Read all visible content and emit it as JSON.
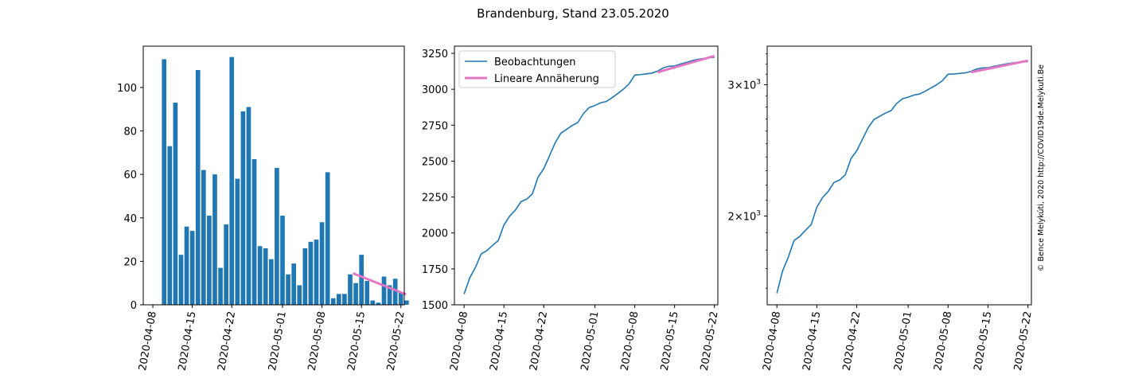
{
  "figure_title": "Brandenburg, Stand 23.05.2020",
  "watermark": "© Bence Melykúti, 2020  http://COVID19de.Melykuti.Be",
  "colors": {
    "series": "#1f77b4",
    "fit": "#e377c2",
    "axis": "#000000",
    "watermark": "#c8c8c8"
  },
  "chart_data": [
    {
      "type": "bar",
      "title": "",
      "xlabel": "",
      "ylabel": "",
      "ylim": [
        0,
        119
      ],
      "yticks": [
        0,
        20,
        40,
        60,
        80,
        100
      ],
      "xlim": [
        -1.7,
        44.6
      ],
      "x_ticks": [
        {
          "x": 0,
          "label": "2020-04-08"
        },
        {
          "x": 7,
          "label": "2020-04-15"
        },
        {
          "x": 14,
          "label": "2020-04-22"
        },
        {
          "x": 23,
          "label": "2020-05-01"
        },
        {
          "x": 30,
          "label": "2020-05-08"
        },
        {
          "x": 37,
          "label": "2020-05-15"
        },
        {
          "x": 44,
          "label": "2020-05-22"
        }
      ],
      "categories": [
        "2020-04-10",
        "2020-04-11",
        "2020-04-12",
        "2020-04-13",
        "2020-04-14",
        "2020-04-15",
        "2020-04-16",
        "2020-04-17",
        "2020-04-18",
        "2020-04-19",
        "2020-04-20",
        "2020-04-21",
        "2020-04-22",
        "2020-04-23",
        "2020-04-24",
        "2020-04-25",
        "2020-04-26",
        "2020-04-27",
        "2020-04-28",
        "2020-04-29",
        "2020-04-30",
        "2020-05-01",
        "2020-05-02",
        "2020-05-03",
        "2020-05-04",
        "2020-05-05",
        "2020-05-06",
        "2020-05-07",
        "2020-05-08",
        "2020-05-09",
        "2020-05-10",
        "2020-05-11",
        "2020-05-12",
        "2020-05-13",
        "2020-05-14",
        "2020-05-15",
        "2020-05-16",
        "2020-05-17",
        "2020-05-18",
        "2020-05-19",
        "2020-05-20",
        "2020-05-21",
        "2020-05-22",
        "2020-05-23"
      ],
      "bar_x": [
        2,
        3,
        4,
        5,
        6,
        7,
        8,
        9,
        10,
        11,
        12,
        13,
        14,
        15,
        16,
        17,
        18,
        19,
        20,
        21,
        22,
        23,
        24,
        25,
        26,
        27,
        28,
        29,
        30,
        31,
        32,
        33,
        34,
        35,
        36,
        37,
        38,
        39,
        40,
        41,
        42,
        43,
        44,
        45
      ],
      "values": [
        113,
        73,
        93,
        23,
        36,
        34,
        108,
        62,
        41,
        60,
        17,
        37,
        114,
        58,
        89,
        91,
        67,
        27,
        26,
        21,
        63,
        41,
        14,
        19,
        9,
        26,
        29,
        30,
        38,
        61,
        3,
        5,
        5,
        14,
        10,
        23,
        11,
        2,
        1,
        13,
        9,
        12,
        6,
        2
      ],
      "series": [
        {
          "name": "Lineare Annäherung",
          "type": "line",
          "x": [
            35.5,
            44.9
          ],
          "values": [
            14.5,
            4.8
          ]
        }
      ]
    },
    {
      "type": "line",
      "title": "",
      "xlabel": "",
      "ylabel": "",
      "ylim": [
        1500,
        3300
      ],
      "yticks": [
        1500,
        1750,
        2000,
        2250,
        2500,
        2750,
        3000,
        3250
      ],
      "xlim": [
        -1.7,
        44.6
      ],
      "x_ticks": [
        {
          "x": 0,
          "label": "2020-04-08"
        },
        {
          "x": 7,
          "label": "2020-04-15"
        },
        {
          "x": 14,
          "label": "2020-04-22"
        },
        {
          "x": 23,
          "label": "2020-05-01"
        },
        {
          "x": 30,
          "label": "2020-05-08"
        },
        {
          "x": 37,
          "label": "2020-05-15"
        },
        {
          "x": 44,
          "label": "2020-05-22"
        }
      ],
      "legend": {
        "position": "upper-left",
        "entries": [
          "Beobachtungen",
          "Lineare Annäherung"
        ]
      },
      "series": [
        {
          "name": "Beobachtungen",
          "x": [
            0,
            1,
            2,
            3,
            4,
            5,
            6,
            7,
            8,
            9,
            10,
            11,
            12,
            13,
            14,
            15,
            16,
            17,
            18,
            19,
            20,
            21,
            22,
            23,
            24,
            25,
            26,
            27,
            28,
            29,
            30,
            31,
            32,
            33,
            34,
            35,
            36,
            37,
            38,
            39,
            40,
            41,
            42,
            43,
            44
          ],
          "values": [
            1575,
            1688,
            1761,
            1854,
            1877,
            1913,
            1947,
            2055,
            2117,
            2158,
            2218,
            2235,
            2272,
            2389,
            2447,
            2536,
            2627,
            2694,
            2721,
            2748,
            2769,
            2832,
            2873,
            2887,
            2906,
            2915,
            2941,
            2970,
            3000,
            3038,
            3099,
            3102,
            3107,
            3112,
            3126,
            3149,
            3160,
            3162,
            3175,
            3186,
            3198,
            3207,
            3214,
            3220,
            3222
          ]
        },
        {
          "name": "Lineare Annäherung",
          "x": [
            34,
            44
          ],
          "values": [
            3118,
            3232
          ]
        }
      ]
    },
    {
      "type": "line",
      "title": "",
      "xlabel": "",
      "ylabel": "",
      "yscale": "log",
      "ylim": [
        1520,
        3380
      ],
      "yticks": [
        2000,
        3000
      ],
      "ytick_labels": [
        {
          "value": 2000,
          "mantissa": "2",
          "times": "×",
          "base": "10",
          "exponent": "3"
        },
        {
          "value": 3000,
          "mantissa": "3",
          "times": "×",
          "base": "10",
          "exponent": "3"
        }
      ],
      "xlim": [
        -1.7,
        44.6
      ],
      "x_ticks": [
        {
          "x": 0,
          "label": "2020-04-08"
        },
        {
          "x": 7,
          "label": "2020-04-15"
        },
        {
          "x": 14,
          "label": "2020-04-22"
        },
        {
          "x": 23,
          "label": "2020-05-01"
        },
        {
          "x": 30,
          "label": "2020-05-08"
        },
        {
          "x": 37,
          "label": "2020-05-15"
        },
        {
          "x": 44,
          "label": "2020-05-22"
        }
      ],
      "series": [
        {
          "name": "Beobachtungen",
          "x": [
            0,
            1,
            2,
            3,
            4,
            5,
            6,
            7,
            8,
            9,
            10,
            11,
            12,
            13,
            14,
            15,
            16,
            17,
            18,
            19,
            20,
            21,
            22,
            23,
            24,
            25,
            26,
            27,
            28,
            29,
            30,
            31,
            32,
            33,
            34,
            35,
            36,
            37,
            38,
            39,
            40,
            41,
            42,
            43,
            44
          ],
          "values": [
            1575,
            1688,
            1761,
            1854,
            1877,
            1913,
            1947,
            2055,
            2117,
            2158,
            2218,
            2235,
            2272,
            2389,
            2447,
            2536,
            2627,
            2694,
            2721,
            2748,
            2769,
            2832,
            2873,
            2887,
            2906,
            2915,
            2941,
            2970,
            3000,
            3038,
            3099,
            3102,
            3107,
            3112,
            3126,
            3149,
            3160,
            3162,
            3175,
            3186,
            3198,
            3207,
            3214,
            3220,
            3222
          ]
        },
        {
          "name": "Lineare Annäherung",
          "x": [
            34,
            44
          ],
          "values": [
            3118,
            3232
          ]
        }
      ]
    }
  ]
}
